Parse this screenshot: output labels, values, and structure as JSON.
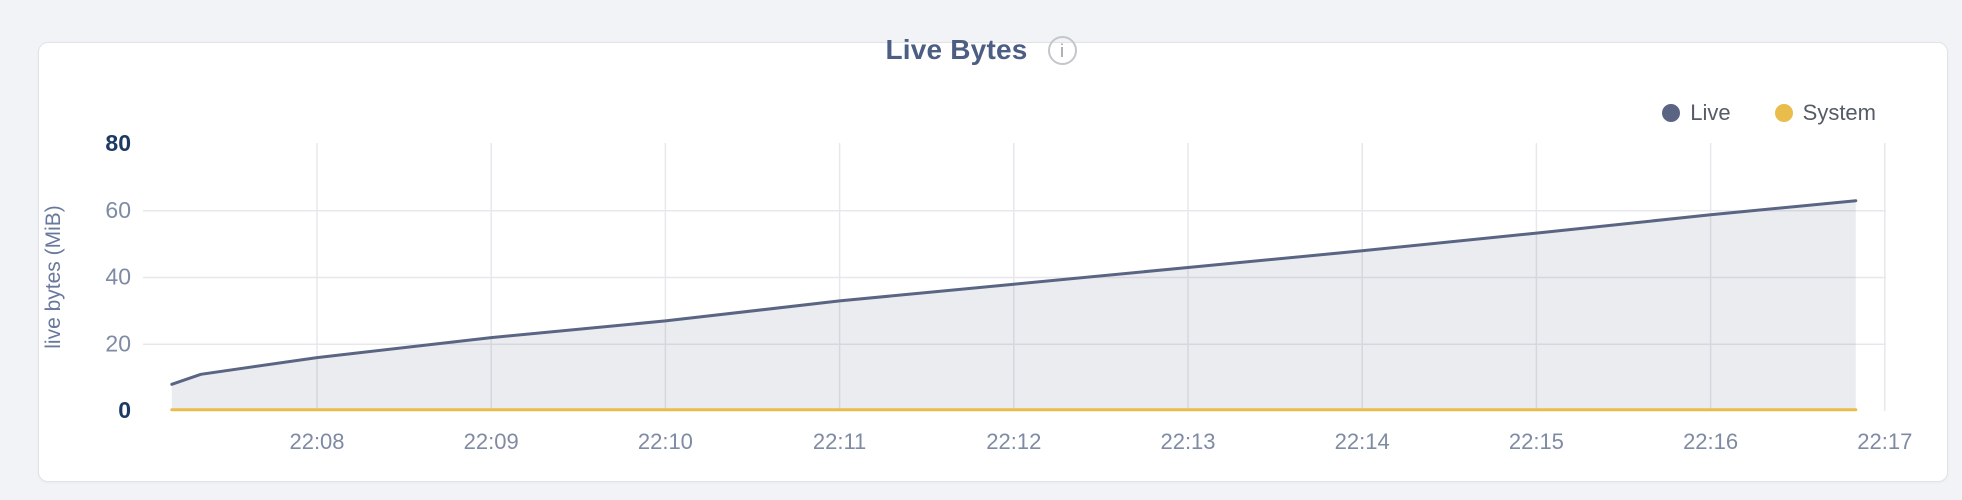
{
  "page": {
    "background": "#f2f3f6"
  },
  "chart": {
    "title": "Live Bytes",
    "info_glyph": "i"
  },
  "colors": {
    "live": "#5a6584",
    "live_fill": "rgba(90,101,132,0.12)",
    "system": "#e9bc4b",
    "grid": "#e7e8eb",
    "ytick_normal": "#7e8ba3",
    "ytick_emphasis": "#1d3a63",
    "title": "#4d5e85",
    "card_border": "#e2e3e7"
  },
  "chart_data": {
    "type": "area",
    "title": "Live Bytes",
    "xlabel": "",
    "ylabel": "live bytes (MiB)",
    "ylim": [
      0,
      80
    ],
    "yticks": [
      0,
      20,
      40,
      60,
      80
    ],
    "ytick_emphasis": [
      0,
      80
    ],
    "xticks": [
      "22:08",
      "22:09",
      "22:10",
      "22:11",
      "22:12",
      "22:13",
      "22:14",
      "22:15",
      "22:16",
      "22:17"
    ],
    "x_domain": [
      "22:07:10",
      "22:16:50"
    ],
    "grid": true,
    "legend_position": "top-right",
    "series": [
      {
        "name": "Live",
        "color": "#5a6584",
        "fill": "rgba(90,101,132,0.12)",
        "points": [
          [
            "22:07:10",
            8
          ],
          [
            "22:07:20",
            11
          ],
          [
            "22:08:00",
            16
          ],
          [
            "22:09:00",
            22
          ],
          [
            "22:10:00",
            27
          ],
          [
            "22:11:00",
            33
          ],
          [
            "22:12:00",
            38
          ],
          [
            "22:13:00",
            43
          ],
          [
            "22:14:00",
            48
          ],
          [
            "22:15:00",
            53.3
          ],
          [
            "22:16:00",
            58.8
          ],
          [
            "22:16:50",
            63
          ]
        ]
      },
      {
        "name": "System",
        "color": "#e9bc4b",
        "points": [
          [
            "22:07:10",
            0.4
          ],
          [
            "22:16:50",
            0.4
          ]
        ]
      }
    ]
  }
}
